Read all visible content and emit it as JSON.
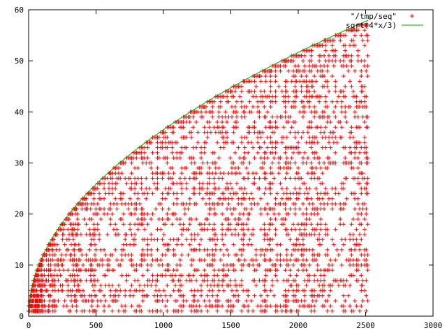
{
  "chart_data": {
    "type": "scatter",
    "title": "",
    "xlabel": "",
    "ylabel": "",
    "xlim": [
      0,
      3000
    ],
    "ylim": [
      0,
      60
    ],
    "x_ticks": [
      0,
      500,
      1000,
      1500,
      2000,
      2500,
      3000
    ],
    "y_ticks": [
      0,
      10,
      20,
      30,
      40,
      50,
      60
    ],
    "x_tick_labels": [
      "0",
      "500",
      "1000",
      "1500",
      "2000",
      "2500",
      "3000"
    ],
    "y_tick_labels": [
      "0",
      "10",
      "20",
      "30",
      "40",
      "50",
      "60"
    ],
    "grid": false,
    "legend_position": "top-right",
    "series": [
      {
        "name": "\"/tmp/seq\"",
        "kind": "points",
        "marker": "plus",
        "color": "#ff0000",
        "x_range": [
          1,
          2520
        ],
        "points": [
          [
            1,
            1
          ],
          [
            2,
            1
          ],
          [
            3,
            2
          ],
          [
            4,
            2
          ],
          [
            5,
            2
          ],
          [
            6,
            2
          ],
          [
            8,
            3
          ],
          [
            10,
            3
          ],
          [
            12,
            3
          ],
          [
            15,
            4
          ],
          [
            20,
            4
          ],
          [
            25,
            5
          ],
          [
            30,
            6
          ],
          [
            40,
            7
          ],
          [
            50,
            8
          ],
          [
            60,
            8
          ],
          [
            75,
            10
          ],
          [
            100,
            11
          ],
          [
            125,
            12
          ],
          [
            150,
            14
          ],
          [
            200,
            16
          ],
          [
            250,
            18
          ],
          [
            300,
            20
          ],
          [
            350,
            21
          ],
          [
            400,
            23
          ],
          [
            500,
            25
          ],
          [
            600,
            28
          ],
          [
            700,
            30
          ],
          [
            800,
            32
          ],
          [
            900,
            34
          ],
          [
            1000,
            36
          ],
          [
            1100,
            38
          ],
          [
            1200,
            40
          ],
          [
            1300,
            41
          ],
          [
            1400,
            43
          ],
          [
            1500,
            44
          ],
          [
            1600,
            46
          ],
          [
            1700,
            47
          ],
          [
            1800,
            48
          ],
          [
            1900,
            50
          ],
          [
            2000,
            51
          ],
          [
            2100,
            52
          ],
          [
            2200,
            54
          ],
          [
            2300,
            55
          ],
          [
            2400,
            56
          ],
          [
            2500,
            57
          ]
        ]
      },
      {
        "name": "sqrt(4*x/3)",
        "kind": "line",
        "color": "#00a000",
        "function": "sqrt(4*x/3)",
        "x_range": [
          0,
          2520
        ]
      }
    ]
  },
  "legend": {
    "items": [
      {
        "label": "\"/tmp/seq\"",
        "color": "#ff0000",
        "icon": "plus-marker"
      },
      {
        "label": "sqrt(4*x/3)",
        "color": "#00a000",
        "icon": "line-sample"
      }
    ]
  }
}
